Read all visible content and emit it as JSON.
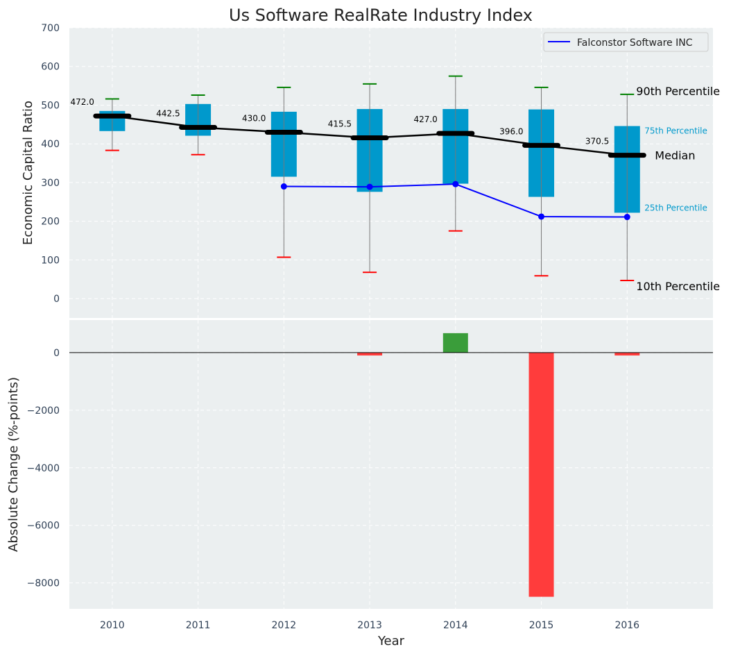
{
  "chart_data": [
    {
      "type": "box",
      "title": "Us Software RealRate Industry Index",
      "xlabel": "",
      "ylabel": "Economic Capital Ratio",
      "ylim": [
        -50,
        700
      ],
      "xlim": [
        2009.5,
        2017
      ],
      "yticks": [
        0,
        100,
        200,
        300,
        400,
        500,
        600,
        700
      ],
      "categories": [
        2010,
        2011,
        2012,
        2013,
        2014,
        2015,
        2016
      ],
      "p10": [
        383,
        372,
        107,
        68,
        175,
        59,
        47
      ],
      "p25": [
        433,
        421,
        315,
        276,
        297,
        263,
        222
      ],
      "median": [
        472.0,
        442.5,
        430.0,
        415.5,
        427.0,
        396.0,
        370.5
      ],
      "median_labels": [
        "472.0",
        "442.5",
        "430.0",
        "415.5",
        "427.0",
        "396.0",
        "370.5"
      ],
      "p75": [
        485,
        503,
        483,
        490,
        490,
        489,
        446
      ],
      "p90": [
        516,
        526,
        546,
        555,
        575,
        546,
        528
      ],
      "series": [
        {
          "name": "Falconstor Software INC",
          "x": [
            2012,
            2013,
            2014,
            2015,
            2016
          ],
          "values": [
            290,
            289,
            296,
            212,
            211
          ],
          "color": "#0000ff"
        }
      ],
      "annotations": {
        "p90": "90th Percentile",
        "p75": "75th Percentile",
        "median": "Median",
        "p25": "25th Percentile",
        "p10": "10th Percentile"
      },
      "legend": "top-right",
      "grid": true,
      "colors": {
        "box": "#0099cc",
        "median": "#000000",
        "p90": "#008000",
        "p10": "#ff0000",
        "background": "#ebeff0"
      }
    },
    {
      "type": "bar",
      "xlabel": "Year",
      "ylabel": "Absolute Change (%-points)",
      "ylim": [
        -8900,
        1130
      ],
      "yticks": [
        0,
        -2000,
        -4000,
        -6000,
        -8000
      ],
      "ytick_labels": [
        "0",
        "−2000",
        "−4000",
        "−6000",
        "−8000"
      ],
      "categories": [
        2010,
        2011,
        2012,
        2013,
        2014,
        2015,
        2016
      ],
      "values": [
        0,
        0,
        0,
        -100,
        675,
        -8480,
        -100
      ],
      "colors": {
        "positive": "#3a9d3a",
        "negative": "#ff3c3c"
      },
      "grid": true
    }
  ]
}
